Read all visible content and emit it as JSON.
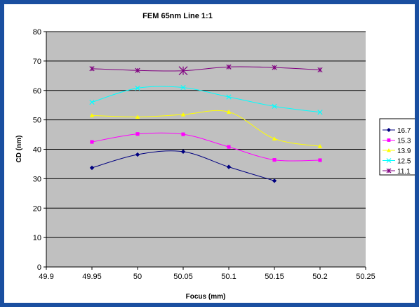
{
  "chart_data": {
    "type": "line",
    "title": "FEM 65nm Line 1:1",
    "xlabel": "Focus (mm)",
    "ylabel": "CD (nm)",
    "xlim": [
      49.9,
      50.25
    ],
    "ylim": [
      0,
      80
    ],
    "x_ticks": [
      "49.9",
      "49.95",
      "50",
      "50.05",
      "50.1",
      "50.15",
      "50.2",
      "50.25"
    ],
    "y_ticks": [
      "0",
      "10",
      "20",
      "30",
      "40",
      "50",
      "60",
      "70",
      "80"
    ],
    "grid": "horizontal",
    "smooth": true,
    "plot_background": "#c0c0c0",
    "legend_position": "right",
    "series": [
      {
        "name": "16.7",
        "color": "#000080",
        "marker": "diamond",
        "x": [
          49.95,
          50.0,
          50.05,
          50.1,
          50.15
        ],
        "y": [
          33.7,
          38.2,
          39.2,
          34.0,
          29.3
        ]
      },
      {
        "name": "15.3",
        "color": "#ff00ff",
        "marker": "square",
        "x": [
          49.95,
          50.0,
          50.05,
          50.1,
          50.15,
          50.2
        ],
        "y": [
          42.5,
          45.2,
          45.1,
          40.8,
          36.4,
          36.3
        ]
      },
      {
        "name": "13.9",
        "color": "#ffff00",
        "marker": "triangle",
        "x": [
          49.95,
          50.0,
          50.05,
          50.1,
          50.15,
          50.2
        ],
        "y": [
          51.5,
          51.0,
          51.8,
          52.7,
          43.6,
          41.0
        ]
      },
      {
        "name": "12.5",
        "color": "#00ffff",
        "marker": "x",
        "x": [
          49.95,
          50.0,
          50.05,
          50.1,
          50.15,
          50.2
        ],
        "y": [
          56.0,
          60.8,
          61.0,
          57.8,
          54.6,
          52.6
        ]
      },
      {
        "name": "11.1",
        "color": "#800080",
        "marker": "star",
        "x": [
          49.95,
          50.0,
          50.05,
          50.1,
          50.15,
          50.2
        ],
        "y": [
          67.4,
          66.8,
          66.7,
          68.0,
          67.8,
          67.0
        ]
      }
    ]
  }
}
